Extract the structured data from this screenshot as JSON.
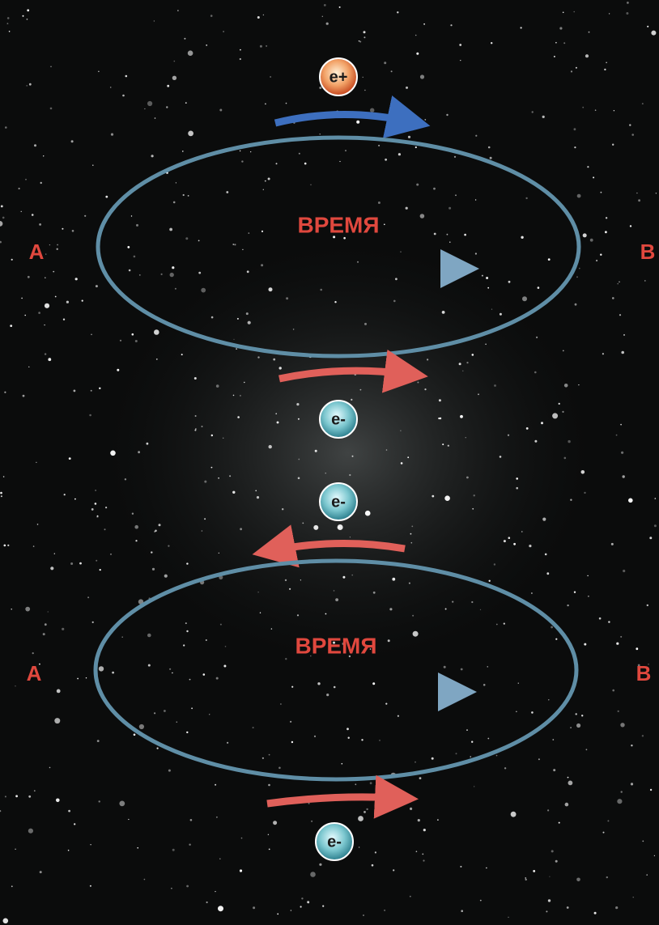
{
  "diagrams": [
    {
      "top_particle": "e+",
      "time_label": "ВРЕМЯ",
      "left_label": "A",
      "right_label": "B",
      "bottom_particle": "e-"
    },
    {
      "top_particle": "e-",
      "time_label": "ВРЕМЯ",
      "left_label": "A",
      "right_label": "B",
      "bottom_particle": "e-"
    }
  ]
}
